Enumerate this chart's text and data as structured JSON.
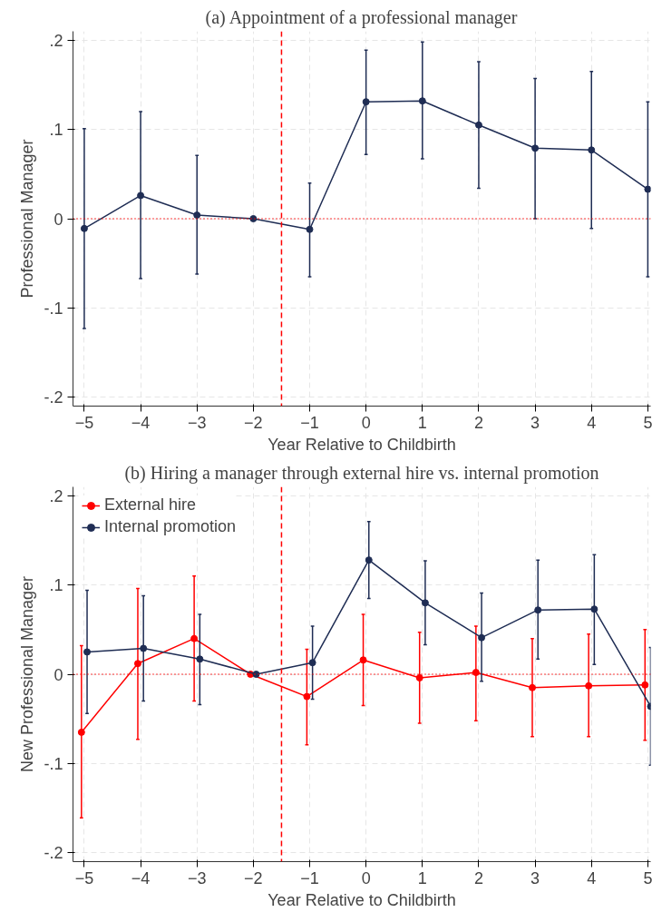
{
  "chart_data": [
    {
      "type": "line",
      "title": "(a) Appointment of a professional manager",
      "xlabel": "Year Relative to Childbirth",
      "ylabel": "Professional Manager",
      "x": [
        -5,
        -4,
        -3,
        -2,
        -1,
        0,
        1,
        2,
        3,
        4,
        5
      ],
      "series": [
        {
          "color": "#1f2d54",
          "values": [
            -0.011,
            0.026,
            0.004,
            0,
            -0.012,
            0.131,
            0.132,
            0.105,
            0.079,
            0.077,
            0.033
          ],
          "errors": [
            [
              -0.123,
              0.101
            ],
            [
              -0.067,
              0.12
            ],
            [
              -0.062,
              0.071
            ],
            null,
            [
              -0.065,
              0.04
            ],
            [
              0.072,
              0.189
            ],
            [
              0.067,
              0.198
            ],
            [
              0.034,
              0.176
            ],
            [
              0.0,
              0.157
            ],
            [
              -0.011,
              0.165
            ],
            [
              -0.065,
              0.131
            ]
          ]
        }
      ],
      "xlim": [
        -5.2,
        5.05
      ],
      "xticks": [
        -5,
        -4,
        -3,
        -2,
        -1,
        0,
        1,
        2,
        3,
        4,
        5
      ],
      "ylim": [
        -0.21,
        0.21
      ],
      "yticks": [
        {
          "value": -0.2,
          "label": "-.2"
        },
        {
          "value": -0.1,
          "label": "-.1"
        },
        0,
        {
          "value": 0.1,
          "label": ".1"
        },
        {
          "value": 0.2,
          "label": ".2"
        }
      ],
      "ref_lines": [
        {
          "axis": "x",
          "value": -1.5,
          "color": "#ff0000",
          "line_style": "dashed"
        },
        {
          "axis": "y",
          "value": 0,
          "color": "#ff0000",
          "line_style": "dotted"
        }
      ],
      "grid": true,
      "marker": "circle",
      "legend": false
    },
    {
      "type": "line",
      "title": "(b) Hiring a manager through external hire vs. internal promotion",
      "xlabel": "Year Relative to Childbirth",
      "ylabel": "New Professional Manager",
      "series": [
        {
          "name": "External hire",
          "color": "#ff0000",
          "x": [
            -5.05,
            -4.05,
            -3.05,
            -2.05,
            -1.05,
            -0.05,
            0.95,
            1.95,
            2.95,
            3.95,
            4.95
          ],
          "values": [
            -0.065,
            0.012,
            0.04,
            0,
            -0.025,
            0.016,
            -0.004,
            0.002,
            -0.015,
            -0.013,
            -0.012
          ],
          "errors": [
            [
              -0.161,
              0.032
            ],
            [
              -0.073,
              0.096
            ],
            [
              -0.03,
              0.11
            ],
            null,
            [
              -0.079,
              0.028
            ],
            [
              -0.035,
              0.067
            ],
            [
              -0.055,
              0.047
            ],
            [
              -0.052,
              0.054
            ],
            [
              -0.07,
              0.04
            ],
            [
              -0.07,
              0.045
            ],
            [
              -0.074,
              0.05
            ]
          ]
        },
        {
          "name": "Internal promotion",
          "color": "#1f2d54",
          "x": [
            -4.95,
            -3.95,
            -2.95,
            -1.95,
            -0.95,
            0.05,
            1.05,
            2.05,
            3.05,
            4.05,
            5.05
          ],
          "values": [
            0.025,
            0.029,
            0.017,
            0,
            0.013,
            0.128,
            0.08,
            0.041,
            0.072,
            0.073,
            -0.036
          ],
          "errors": [
            [
              -0.044,
              0.094
            ],
            [
              -0.03,
              0.088
            ],
            [
              -0.034,
              0.067
            ],
            null,
            [
              -0.028,
              0.054
            ],
            [
              0.085,
              0.171
            ],
            [
              0.033,
              0.127
            ],
            [
              -0.008,
              0.091
            ],
            [
              0.017,
              0.128
            ],
            [
              0.011,
              0.134
            ],
            [
              -0.102,
              0.03
            ]
          ]
        }
      ],
      "xlim": [
        -5.2,
        5.05
      ],
      "xticks": [
        -5,
        -4,
        -3,
        -2,
        -1,
        0,
        1,
        2,
        3,
        4,
        5
      ],
      "ylim": [
        -0.21,
        0.21
      ],
      "yticks": [
        {
          "value": -0.2,
          "label": "-.2"
        },
        {
          "value": -0.1,
          "label": "-.1"
        },
        0,
        {
          "value": 0.1,
          "label": ".1"
        },
        {
          "value": 0.2,
          "label": ".2"
        }
      ],
      "ref_lines": [
        {
          "axis": "x",
          "value": -1.5,
          "color": "#ff0000",
          "line_style": "dashed"
        },
        {
          "axis": "y",
          "value": 0,
          "color": "#ff0000",
          "line_style": "dotted"
        }
      ],
      "grid": true,
      "marker": "circle",
      "legend": "top left"
    }
  ]
}
